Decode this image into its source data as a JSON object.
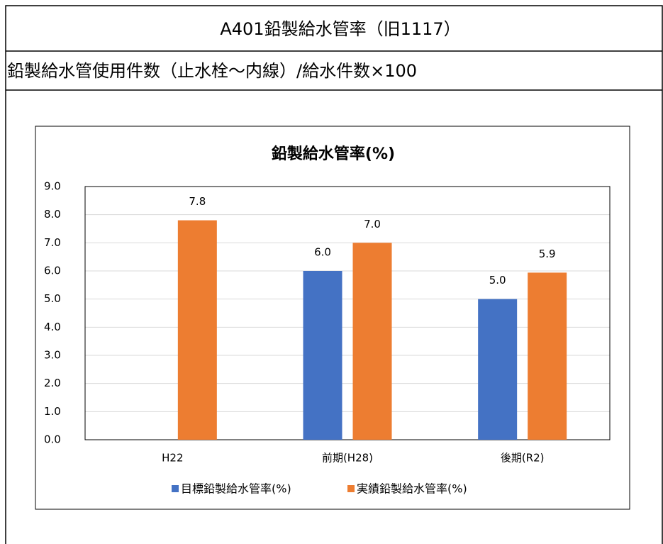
{
  "header": {
    "title": "A401鉛製給水管率（旧1117）",
    "definition": "鉛製給水管使用件数（止水栓～内線）/給水件数×100"
  },
  "chart_data": {
    "type": "bar",
    "title": "鉛製給水管率(%)",
    "categories": [
      "H22",
      "前期(H28)",
      "後期(R2)"
    ],
    "series": [
      {
        "name": "目標鉛製給水管率(%)",
        "color": "#4472c4",
        "values": [
          null,
          6.0,
          5.0
        ],
        "value_labels": [
          null,
          "6.0",
          "5.0"
        ]
      },
      {
        "name": "実績鉛製給水管率(%)",
        "color": "#ed7d31",
        "values": [
          7.8,
          7.0,
          5.94
        ],
        "value_labels": [
          "7.8",
          "7.0",
          "5.9"
        ]
      }
    ],
    "ylim": [
      0,
      9
    ],
    "yticks": [
      {
        "value": 0,
        "label": "0.0"
      },
      {
        "value": 1,
        "label": "1.0"
      },
      {
        "value": 2,
        "label": "2.0"
      },
      {
        "value": 3,
        "label": "3.0"
      },
      {
        "value": 4,
        "label": "4.0"
      },
      {
        "value": 5,
        "label": "5.0"
      },
      {
        "value": 6,
        "label": "6.0"
      },
      {
        "value": 7,
        "label": "7.0"
      },
      {
        "value": 8,
        "label": "8.0"
      },
      {
        "value": 9,
        "label": "9.0"
      }
    ],
    "grid": true,
    "legend": "bottom"
  }
}
